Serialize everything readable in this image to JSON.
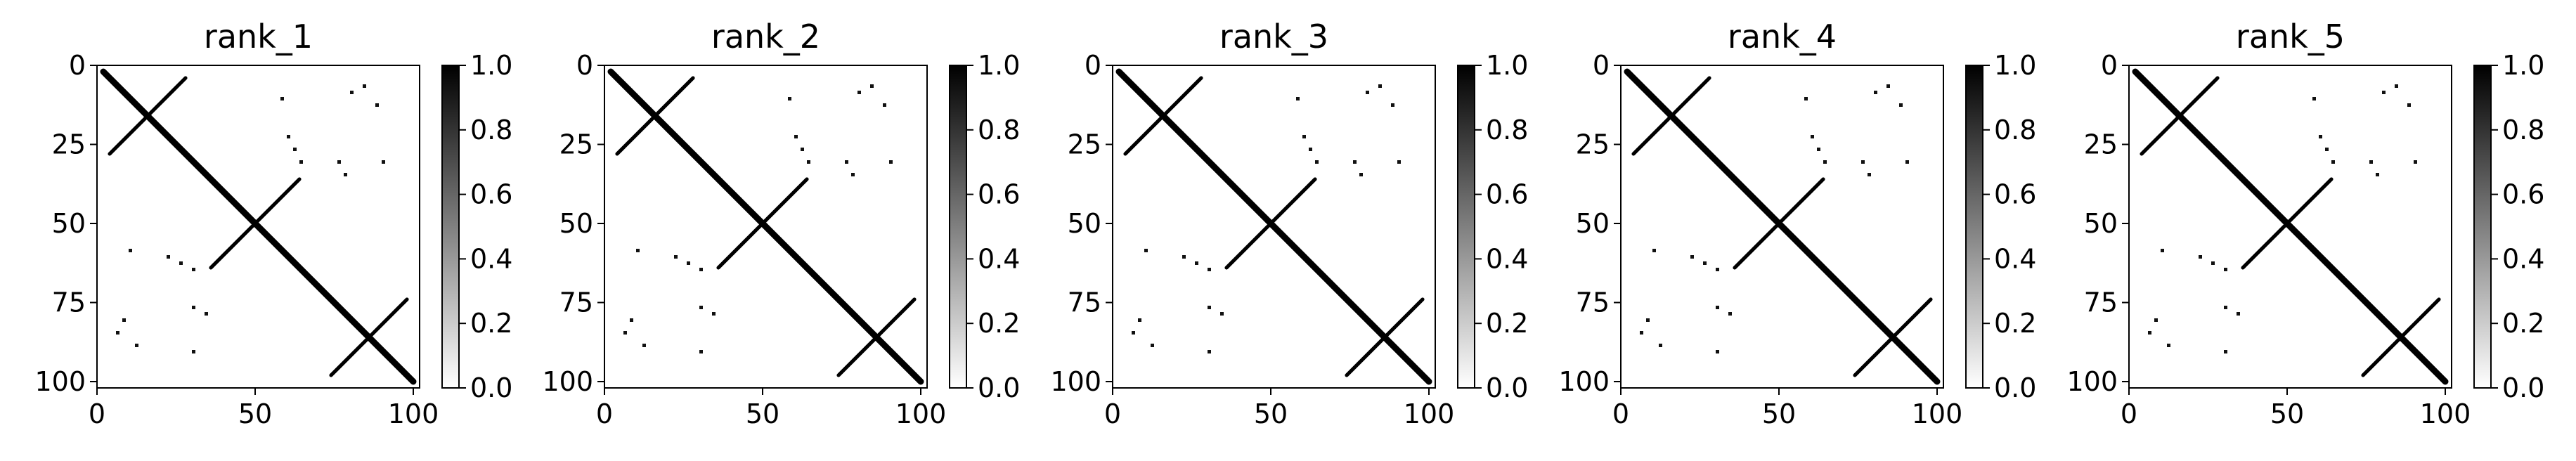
{
  "chart_data": [
    {
      "type": "heatmap",
      "title": "rank_1",
      "xlim": [
        0,
        102
      ],
      "ylim": [
        102,
        0
      ],
      "x_ticks": [
        "0",
        "50",
        "100"
      ],
      "y_ticks": [
        "0",
        "25",
        "50",
        "75",
        "100"
      ],
      "colorbar": {
        "ticks": [
          "0.0",
          "0.2",
          "0.4",
          "0.6",
          "0.8",
          "1.0"
        ],
        "range": [
          0.0,
          1.0
        ],
        "colormap": "gray_r"
      }
    },
    {
      "type": "heatmap",
      "title": "rank_2",
      "xlim": [
        0,
        102
      ],
      "ylim": [
        102,
        0
      ],
      "x_ticks": [
        "0",
        "50",
        "100"
      ],
      "y_ticks": [
        "0",
        "25",
        "50",
        "75",
        "100"
      ],
      "colorbar": {
        "ticks": [
          "0.0",
          "0.2",
          "0.4",
          "0.6",
          "0.8",
          "1.0"
        ],
        "range": [
          0.0,
          1.0
        ],
        "colormap": "gray_r"
      }
    },
    {
      "type": "heatmap",
      "title": "rank_3",
      "xlim": [
        0,
        102
      ],
      "ylim": [
        102,
        0
      ],
      "x_ticks": [
        "0",
        "50",
        "100"
      ],
      "y_ticks": [
        "0",
        "25",
        "50",
        "75",
        "100"
      ],
      "colorbar": {
        "ticks": [
          "0.0",
          "0.2",
          "0.4",
          "0.6",
          "0.8",
          "1.0"
        ],
        "range": [
          0.0,
          1.0
        ],
        "colormap": "gray_r"
      }
    },
    {
      "type": "heatmap",
      "title": "rank_4",
      "xlim": [
        0,
        102
      ],
      "ylim": [
        102,
        0
      ],
      "x_ticks": [
        "0",
        "50",
        "100"
      ],
      "y_ticks": [
        "0",
        "25",
        "50",
        "75",
        "100"
      ],
      "colorbar": {
        "ticks": [
          "0.0",
          "0.2",
          "0.4",
          "0.6",
          "0.8",
          "1.0"
        ],
        "range": [
          0.0,
          1.0
        ],
        "colormap": "gray_r"
      }
    },
    {
      "type": "heatmap",
      "title": "rank_5",
      "xlim": [
        0,
        102
      ],
      "ylim": [
        102,
        0
      ],
      "x_ticks": [
        "0",
        "50",
        "100"
      ],
      "y_ticks": [
        "0",
        "25",
        "50",
        "75",
        "100"
      ],
      "colorbar": {
        "ticks": [
          "0.0",
          "0.2",
          "0.4",
          "0.6",
          "0.8",
          "1.0"
        ],
        "range": [
          0.0,
          1.0
        ],
        "colormap": "gray_r"
      }
    }
  ],
  "colors": {
    "background": "#ffffff",
    "axes": "#000000",
    "high": "#000000",
    "low": "#ffffff"
  }
}
